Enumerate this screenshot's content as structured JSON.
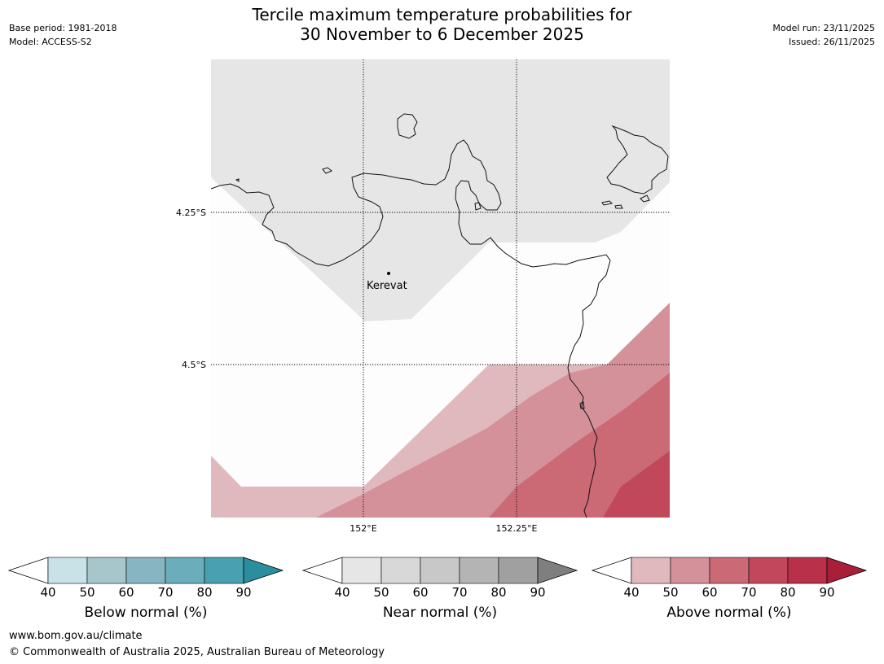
{
  "header": {
    "title_line1": "Tercile maximum temperature probabilities for",
    "title_line2": "30 November to 6 December 2025",
    "base_period": "Base period: 1981-2018",
    "model": "Model: ACCESS-S2",
    "model_run": "Model run: 23/11/2025",
    "issued": "Issued: 26/11/2025"
  },
  "map": {
    "lat_labels": [
      "4.25°S",
      "4.5°S"
    ],
    "lon_labels": [
      "152°E",
      "152.25°E"
    ],
    "place_name": "Kerevat",
    "colors": {
      "near_normal_shade": "#e6e6e6",
      "above_40": "#e0b9be",
      "above_50": "#d5919a",
      "above_60": "#cb6a75",
      "above_70": "#c1485a"
    }
  },
  "colorbars": [
    {
      "label": "Below normal (%)",
      "ticks": [
        "40",
        "50",
        "60",
        "70",
        "80",
        "90"
      ],
      "colors": [
        "#c9e2e7",
        "#a6c6cc",
        "#88b5c2",
        "#6cadbb",
        "#48a1b0",
        "#2a8e9e"
      ]
    },
    {
      "label": "Near normal (%)",
      "ticks": [
        "40",
        "50",
        "60",
        "70",
        "80",
        "90"
      ],
      "colors": [
        "#e6e6e6",
        "#d8d8d8",
        "#c8c8c8",
        "#b4b4b4",
        "#a0a0a0",
        "#7f7f7f"
      ]
    },
    {
      "label": "Above normal (%)",
      "ticks": [
        "40",
        "50",
        "60",
        "70",
        "80",
        "90"
      ],
      "colors": [
        "#e0b9be",
        "#d5919a",
        "#cb6a75",
        "#c1485a",
        "#b93049",
        "#a91f3a"
      ]
    }
  ],
  "footer": {
    "url": "www.bom.gov.au/climate",
    "copyright": "© Commonwealth of Australia 2025, Australian Bureau of Meteorology"
  }
}
